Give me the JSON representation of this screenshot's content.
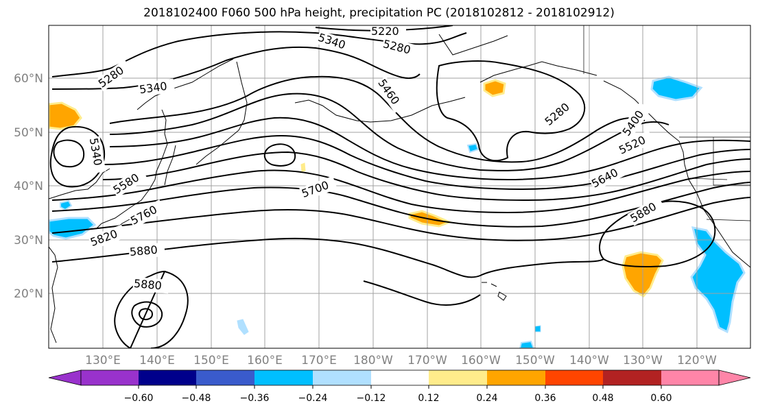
{
  "title": "2018102400 F060 500 hPa height, precipitation PC (2018102812 - 2018102912)",
  "map": {
    "lat_labels": [
      "60°N",
      "50°N",
      "40°N",
      "30°N",
      "20°N"
    ],
    "lon_labels": [
      "130°E",
      "140°E",
      "150°E",
      "160°E",
      "170°E",
      "180°W",
      "170°W",
      "160°W",
      "150°W",
      "140°W",
      "130°W",
      "120°W"
    ],
    "contour_labels": [
      "5220",
      "5340",
      "5280",
      "5280",
      "5340",
      "5340",
      "5460",
      "5280",
      "5400",
      "5520",
      "5580",
      "5700",
      "5640",
      "5760",
      "5820",
      "5880",
      "5880",
      "5880"
    ],
    "contour_color": "#000000",
    "gridline_color": "#a0a0a0"
  },
  "colorbar": {
    "ticks": [
      "−0.60",
      "−0.48",
      "−0.36",
      "−0.24",
      "−0.12",
      "0.12",
      "0.24",
      "0.36",
      "0.48",
      "0.60"
    ],
    "colors": [
      "#9932CC",
      "#00008B",
      "#3A5BCC",
      "#00BFFF",
      "#B0E0FF",
      "#FFFFFF",
      "#FFEC8B",
      "#FFA500",
      "#FF4500",
      "#B22222",
      "#FF85A8"
    ]
  },
  "shading_colors": {
    "positive_light": "#FFEC8B",
    "positive_mid": "#FFA500",
    "negative_light": "#B0E0FF",
    "negative_mid": "#00BFFF"
  }
}
